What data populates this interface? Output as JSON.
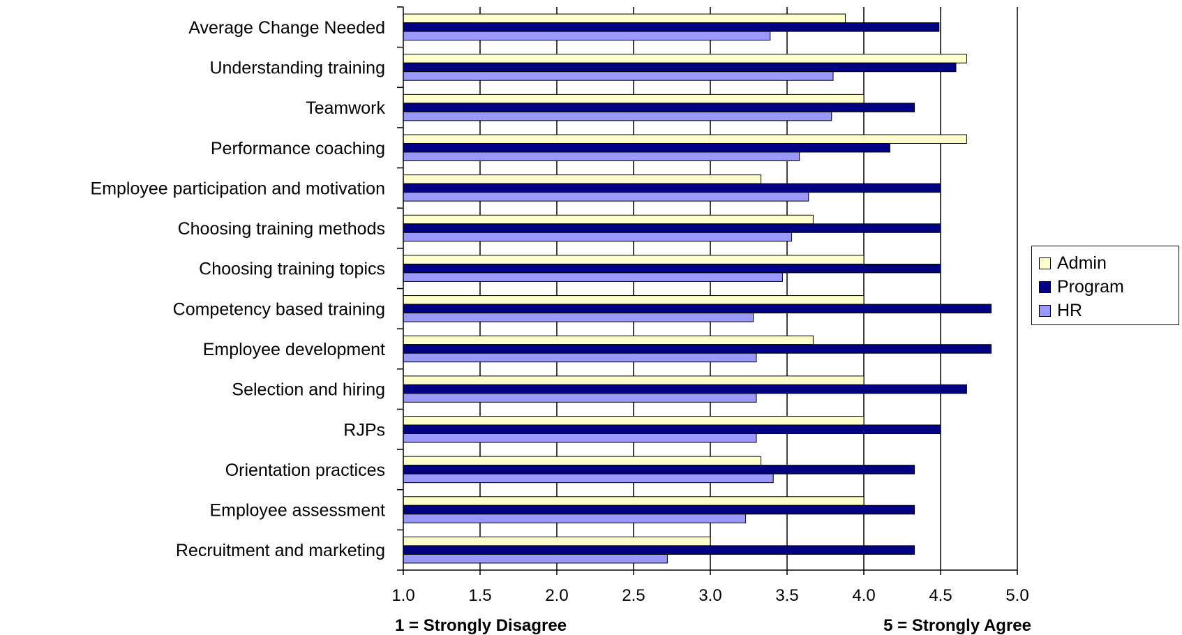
{
  "chart_data": {
    "type": "bar",
    "orientation": "horizontal",
    "categories": [
      "Average Change Needed",
      "Understanding training",
      "Teamwork",
      "Performance coaching",
      "Employee participation and motivation",
      "Choosing training methods",
      "Choosing training topics",
      "Competency based training",
      "Employee development",
      "Selection and hiring",
      "RJPs",
      "Orientation practices",
      "Employee assessment",
      "Recruitment and marketing"
    ],
    "series": [
      {
        "name": "Admin",
        "color": "#ffffcc",
        "values": [
          3.88,
          4.67,
          4.0,
          4.67,
          3.33,
          3.67,
          4.0,
          4.0,
          3.67,
          4.0,
          4.0,
          3.33,
          4.0,
          3.0
        ]
      },
      {
        "name": "Program",
        "color": "#000080",
        "values": [
          4.49,
          4.6,
          4.33,
          4.17,
          4.5,
          4.5,
          4.5,
          4.83,
          4.83,
          4.67,
          4.5,
          4.33,
          4.33,
          4.33
        ]
      },
      {
        "name": "HR",
        "color": "#9999ff",
        "values": [
          3.39,
          3.8,
          3.79,
          3.58,
          3.64,
          3.53,
          3.47,
          3.28,
          3.3,
          3.3,
          3.3,
          3.41,
          3.23,
          2.72
        ]
      }
    ],
    "xlim": [
      1.0,
      5.0
    ],
    "xticks": [
      "1.0",
      "1.5",
      "2.0",
      "2.5",
      "3.0",
      "3.5",
      "4.0",
      "4.5",
      "5.0"
    ],
    "xlabel_left": "1 = Strongly Disagree",
    "xlabel_right": "5 = Strongly Agree",
    "grid": "vertical major gridlines",
    "legend_position": "right"
  }
}
